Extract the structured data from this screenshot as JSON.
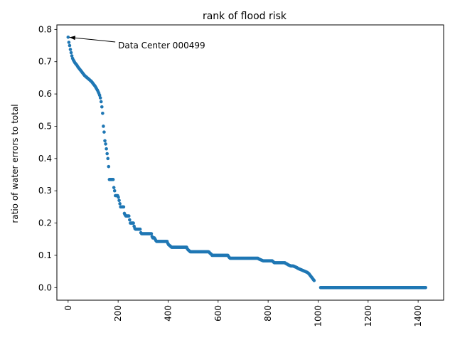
{
  "chart_data": {
    "type": "scatter",
    "title": "rank of flood risk",
    "xlabel": "",
    "ylabel": "ratio of water errors to total",
    "xlim": [
      -45,
      1502
    ],
    "ylim": [
      -0.039,
      0.814
    ],
    "xticks": [
      0,
      200,
      400,
      600,
      800,
      1000,
      1200,
      1400
    ],
    "xtick_labels": [
      "0",
      "200",
      "400",
      "600",
      "800",
      "1000",
      "1200",
      "1400"
    ],
    "yticks": [
      0.0,
      0.1,
      0.2,
      0.3,
      0.4,
      0.5,
      0.6,
      0.7,
      0.8
    ],
    "ytick_labels": [
      "0.0",
      "0.1",
      "0.2",
      "0.3",
      "0.4",
      "0.5",
      "0.6",
      "0.7",
      "0.8"
    ],
    "xtick_rotation": 90,
    "grid": false,
    "legend": false,
    "marker_color": "#1f77b4",
    "annotation": {
      "text": "Data Center 000499",
      "point": [
        0,
        0.776
      ],
      "text_pos": [
        200,
        0.75
      ]
    },
    "points": {
      "x_step": 3,
      "x_start": 0,
      "y": [
        0.776,
        0.76,
        0.75,
        0.738,
        0.728,
        0.718,
        0.71,
        0.705,
        0.701,
        0.697,
        0.694,
        0.691,
        0.688,
        0.684,
        0.681,
        0.678,
        0.675,
        0.672,
        0.669,
        0.666,
        0.663,
        0.66,
        0.657,
        0.655,
        0.653,
        0.651,
        0.649,
        0.647,
        0.645,
        0.643,
        0.641,
        0.639,
        0.636,
        0.633,
        0.63,
        0.627,
        0.624,
        0.62,
        0.616,
        0.612,
        0.607,
        0.602,
        0.596,
        0.588,
        0.576,
        0.56,
        0.54,
        0.5,
        0.482,
        0.455,
        0.445,
        0.43,
        0.415,
        0.4,
        0.375,
        0.335,
        0.335,
        0.335,
        0.335,
        0.335,
        0.335,
        0.31,
        0.3,
        0.285,
        0.285,
        0.285,
        0.285,
        0.28,
        0.27,
        0.26,
        0.25,
        0.25,
        0.25,
        0.25,
        0.25,
        0.23,
        0.225,
        0.222,
        0.222,
        0.222,
        0.222,
        0.222,
        0.21,
        0.2,
        0.2,
        0.2,
        0.2,
        0.2,
        0.19,
        0.183,
        0.181,
        0.181,
        0.181,
        0.181,
        0.181,
        0.181,
        0.181,
        0.17,
        0.167,
        0.167,
        0.167,
        0.167,
        0.167,
        0.167,
        0.167,
        0.167,
        0.167,
        0.167,
        0.167,
        0.167,
        0.167,
        0.167,
        0.158,
        0.154,
        0.154,
        0.154,
        0.15,
        0.146,
        0.143,
        0.143,
        0.143,
        0.143,
        0.143,
        0.143,
        0.143,
        0.143,
        0.143,
        0.143,
        0.143,
        0.143,
        0.143,
        0.143,
        0.143,
        0.137,
        0.133,
        0.131,
        0.129,
        0.127,
        0.125,
        0.125,
        0.125,
        0.125,
        0.125,
        0.125,
        0.125,
        0.125,
        0.125,
        0.125,
        0.125,
        0.125,
        0.125,
        0.125,
        0.125,
        0.125,
        0.125,
        0.125,
        0.125,
        0.125,
        0.125,
        0.12,
        0.117,
        0.115,
        0.113,
        0.111,
        0.111,
        0.111,
        0.111,
        0.111,
        0.111,
        0.111,
        0.111,
        0.111,
        0.111,
        0.111,
        0.111,
        0.111,
        0.111,
        0.111,
        0.111,
        0.111,
        0.111,
        0.111,
        0.111,
        0.111,
        0.111,
        0.111,
        0.111,
        0.111,
        0.11,
        0.107,
        0.105,
        0.103,
        0.1,
        0.1,
        0.1,
        0.1,
        0.1,
        0.1,
        0.1,
        0.1,
        0.1,
        0.1,
        0.1,
        0.1,
        0.1,
        0.1,
        0.1,
        0.1,
        0.1,
        0.1,
        0.1,
        0.1,
        0.1,
        0.1,
        0.096,
        0.093,
        0.091,
        0.091,
        0.091,
        0.091,
        0.091,
        0.091,
        0.091,
        0.091,
        0.091,
        0.091,
        0.091,
        0.091,
        0.091,
        0.091,
        0.091,
        0.091,
        0.091,
        0.091,
        0.091,
        0.091,
        0.091,
        0.091,
        0.091,
        0.091,
        0.091,
        0.091,
        0.091,
        0.091,
        0.091,
        0.091,
        0.091,
        0.091,
        0.091,
        0.091,
        0.091,
        0.091,
        0.091,
        0.091,
        0.089,
        0.088,
        0.087,
        0.086,
        0.085,
        0.084,
        0.083,
        0.083,
        0.083,
        0.083,
        0.083,
        0.083,
        0.083,
        0.083,
        0.083,
        0.083,
        0.083,
        0.083,
        0.083,
        0.081,
        0.079,
        0.077,
        0.077,
        0.077,
        0.077,
        0.077,
        0.077,
        0.077,
        0.077,
        0.077,
        0.077,
        0.077,
        0.077,
        0.077,
        0.077,
        0.077,
        0.075,
        0.074,
        0.073,
        0.071,
        0.07,
        0.069,
        0.068,
        0.067,
        0.067,
        0.067,
        0.067,
        0.066,
        0.065,
        0.064,
        0.063,
        0.062,
        0.06,
        0.059,
        0.058,
        0.057,
        0.056,
        0.055,
        0.054,
        0.053,
        0.052,
        0.051,
        0.05,
        0.049,
        0.048,
        0.047,
        0.045,
        0.043,
        0.04,
        0.037,
        0.034,
        0.031,
        0.028,
        0.025,
        0.022
      ]
    },
    "zero_tail": {
      "x_from": 1010,
      "x_to": 1430,
      "x_step": 3,
      "y": 0.0
    }
  }
}
